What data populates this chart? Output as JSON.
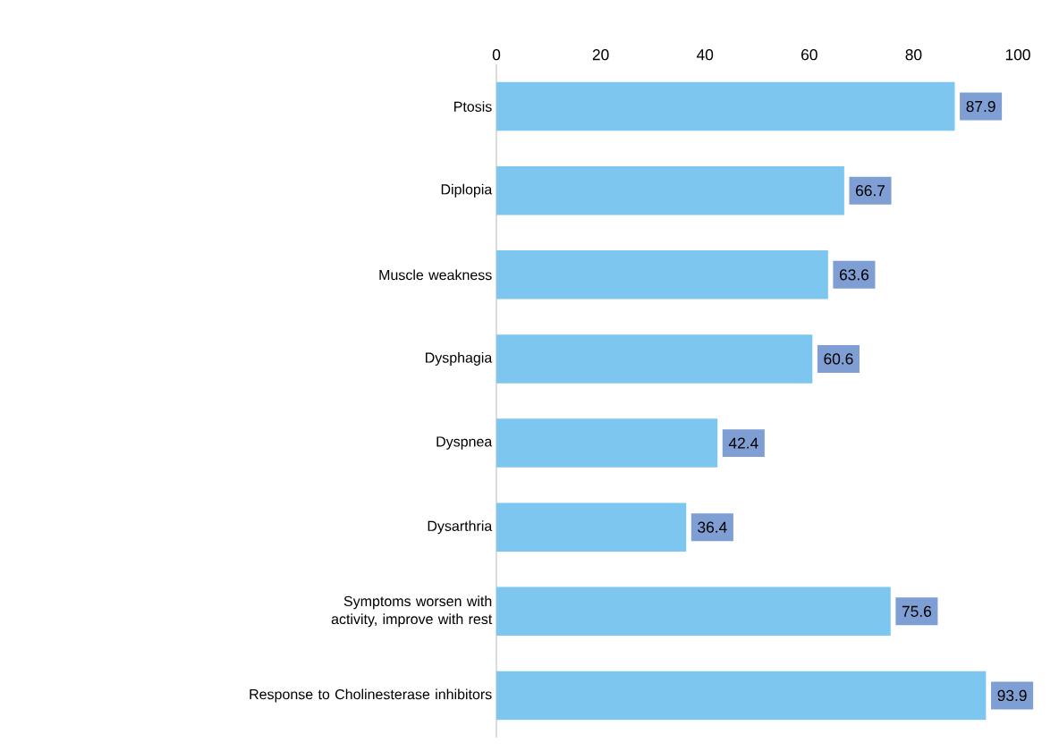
{
  "chart_data": {
    "type": "bar",
    "orientation": "horizontal",
    "categories": [
      "Ptosis",
      "Diplopia",
      "Muscle weakness",
      "Dysphagia",
      "Dyspnea",
      "Dysarthria",
      "Symptoms worsen with activity, improve with rest",
      "Response to Cholinesterase inhibitors"
    ],
    "values": [
      87.9,
      66.7,
      63.6,
      60.6,
      42.4,
      36.4,
      75.6,
      93.9
    ],
    "color": "#7cc6ef",
    "xlim": [
      0,
      100
    ],
    "xticks": [
      0,
      20,
      40,
      60,
      80,
      100
    ],
    "data_labels": true
  }
}
